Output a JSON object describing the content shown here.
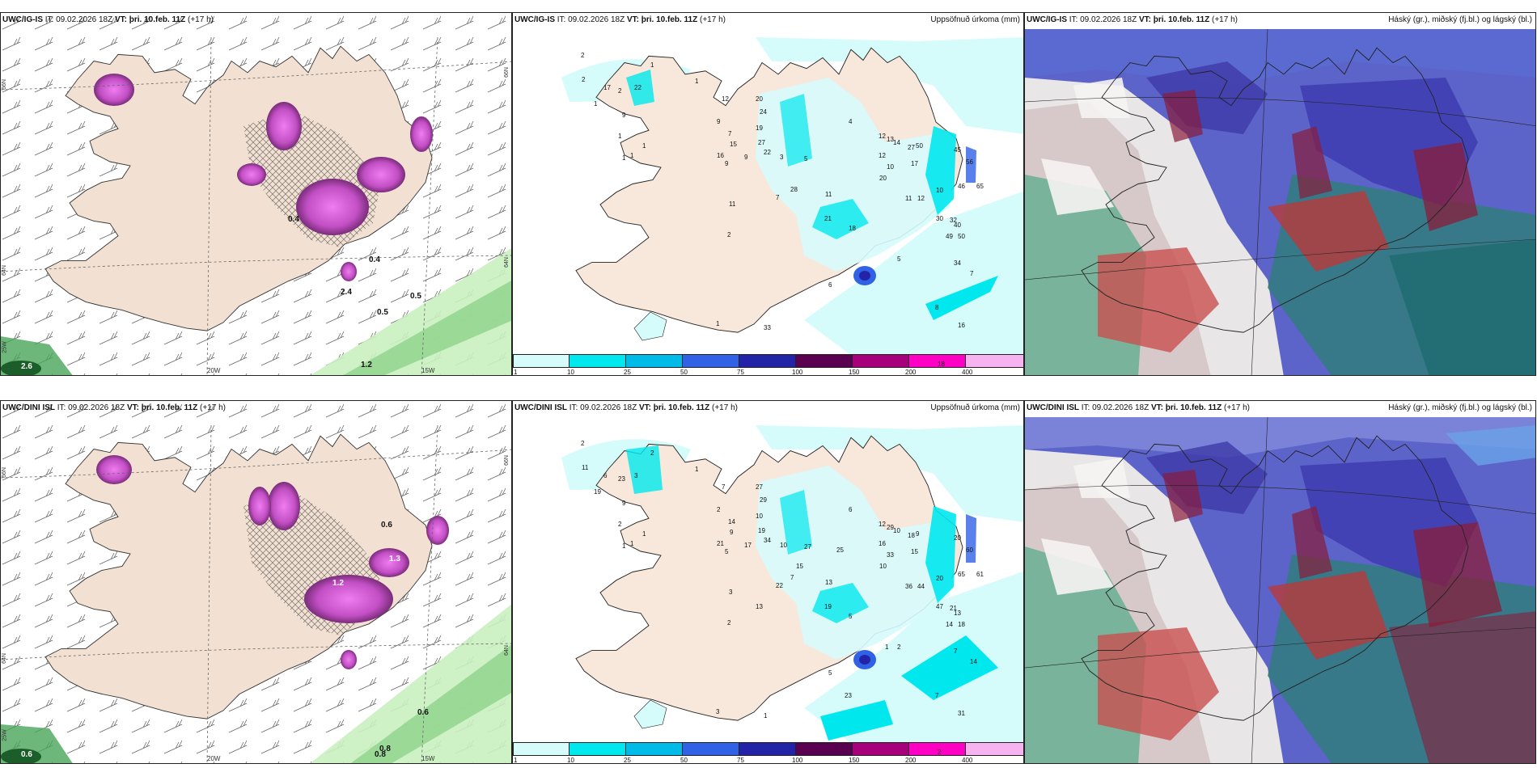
{
  "panels": {
    "ig_wind": {
      "model": "UWC/IG-IS",
      "it_label": "IT:",
      "it_value": "09.02.2026 18Z",
      "vt_label": "VT:",
      "vt_value": "þri. 10.feb. 11Z",
      "lead": "(+17 h)",
      "axis_x": [
        "20W",
        "15W"
      ],
      "axis_y": [
        "66N",
        "64N",
        "25W",
        "66N",
        "64N"
      ],
      "values": [
        "0.4",
        "0.5",
        "0.5",
        "1.2",
        "2.6",
        "2.4",
        "0.4"
      ]
    },
    "ig_precip": {
      "model": "UWC/IG-IS",
      "it_label": "IT:",
      "it_value": "09.02.2026 18Z",
      "vt_label": "VT:",
      "vt_value": "þri. 10.feb. 11Z",
      "lead": "(+17 h)",
      "right_title": "Uppsöfnuð úrkoma (mm)",
      "numbers": [
        "2",
        "1",
        "2",
        "2",
        "1",
        "17",
        "22",
        "9",
        "1",
        "1",
        "1",
        "1",
        "1",
        "12",
        "20",
        "9",
        "7",
        "24",
        "15",
        "19",
        "16",
        "27",
        "9",
        "9",
        "22",
        "3",
        "5",
        "7",
        "11",
        "4",
        "20",
        "28",
        "21",
        "18",
        "11",
        "12",
        "13",
        "14",
        "12",
        "27",
        "10",
        "50",
        "17",
        "45",
        "56",
        "46",
        "65",
        "11",
        "12",
        "10",
        "30",
        "32",
        "40",
        "49",
        "50",
        "34",
        "7",
        "8",
        "16",
        "18",
        "5",
        "2",
        "1",
        "33",
        "6"
      ],
      "colorbar": {
        "colors": [
          "#d6fbfb",
          "#00e8ee",
          "#00bbe8",
          "#3162e6",
          "#2323a8",
          "#5a0050",
          "#a6007c",
          "#ff00c4",
          "#f7b3f0"
        ],
        "labels": [
          "1",
          "10",
          "25",
          "50",
          "75",
          "100",
          "150",
          "200",
          "400"
        ]
      }
    },
    "ig_cloud": {
      "model": "UWC/IG-IS",
      "it_label": "IT:",
      "it_value": "09.02.2026 18Z",
      "vt_label": "VT:",
      "vt_value": "þri. 10.feb. 11Z",
      "lead": "(+17 h)",
      "right_title": "Háský (gr.), miðský (fj.bl.) og lágský (bl.)"
    },
    "dini_wind": {
      "model": "UWC/DINI ISL",
      "it_label": "IT:",
      "it_value": "09.02.2026 18Z",
      "vt_label": "VT:",
      "vt_value": "þri. 10.feb. 11Z",
      "lead": "(+17 h)",
      "axis_x": [
        "20W",
        "15W"
      ],
      "axis_y": [
        "66N",
        "64N",
        "25W",
        "66N",
        "64N"
      ],
      "values": [
        "0.6",
        "0.6",
        "0.8",
        "0.8",
        "1.2",
        "1.3",
        "0.6"
      ]
    },
    "dini_precip": {
      "model": "UWC/DINI ISL",
      "it_label": "IT:",
      "it_value": "09.02.2026 18Z",
      "vt_label": "VT:",
      "vt_value": "þri. 10.feb. 11Z",
      "lead": "(+17 h)",
      "right_title": "Uppsöfnuð úrkoma (mm)",
      "numbers": [
        "2",
        "1",
        "11",
        "23",
        "19",
        "6",
        "3",
        "9",
        "2",
        "1",
        "1",
        "1",
        "2",
        "7",
        "27",
        "2",
        "14",
        "29",
        "9",
        "10",
        "21",
        "19",
        "5",
        "17",
        "34",
        "10",
        "27",
        "22",
        "3",
        "6",
        "10",
        "7",
        "19",
        "5",
        "13",
        "12",
        "29",
        "10",
        "16",
        "18",
        "33",
        "9",
        "15",
        "20",
        "60",
        "65",
        "61",
        "36",
        "44",
        "20",
        "47",
        "21",
        "13",
        "14",
        "18",
        "7",
        "14",
        "7",
        "31",
        "2",
        "2",
        "2",
        "3",
        "1",
        "5",
        "1",
        "23",
        "15",
        "25",
        "13"
      ],
      "colorbar": {
        "colors": [
          "#d6fbfb",
          "#00e8ee",
          "#00bbe8",
          "#3162e6",
          "#2323a8",
          "#5a0050",
          "#a6007c",
          "#ff00c4",
          "#f7b3f0"
        ],
        "labels": [
          "1",
          "10",
          "25",
          "50",
          "75",
          "100",
          "150",
          "200",
          "400"
        ]
      }
    },
    "dini_cloud": {
      "model": "UWC/DINI ISL",
      "it_label": "IT:",
      "it_value": "09.02.2026 18Z",
      "vt_label": "VT:",
      "vt_value": "þri. 10.feb. 11Z",
      "lead": "(+17 h)",
      "right_title": "Háský (gr.), miðský (fj.bl.) og lágský (bl.)"
    }
  }
}
